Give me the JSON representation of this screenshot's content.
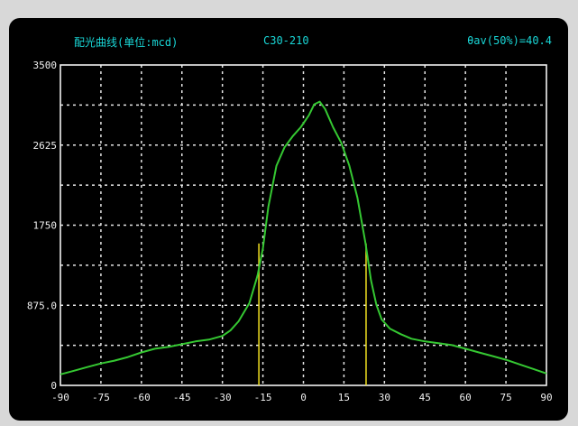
{
  "header": {
    "title": "配光曲线(单位:mcd)",
    "model": "C30-210",
    "beam_angle": "θav(50%)=40.4"
  },
  "chart_data": {
    "type": "line",
    "title": "配光曲线(单位:mcd)",
    "subtitle": "C30-210",
    "annotation": "θav(50%)=40.4",
    "xlabel": "",
    "ylabel": "",
    "xlim": [
      -90,
      90
    ],
    "ylim": [
      0,
      3500
    ],
    "grid": true,
    "colors": {
      "curve": "#35c832",
      "marker": "#f0e020",
      "grid": "#e6e6e6",
      "title": "#19d6d6"
    },
    "x_ticks": [
      "-90",
      "-75",
      "-60",
      "-45",
      "-30",
      "-15",
      "0",
      "15",
      "30",
      "45",
      "60",
      "75",
      "90"
    ],
    "y_ticks": [
      "0",
      "875.0",
      "1750",
      "2625",
      "3500"
    ],
    "series": [
      {
        "values": [
          [
            -90,
            120
          ],
          [
            -85,
            160
          ],
          [
            -80,
            200
          ],
          [
            -75,
            240
          ],
          [
            -70,
            270
          ],
          [
            -65,
            310
          ],
          [
            -60,
            360
          ],
          [
            -55,
            400
          ],
          [
            -50,
            420
          ],
          [
            -45,
            450
          ],
          [
            -40,
            480
          ],
          [
            -35,
            500
          ],
          [
            -30,
            540
          ],
          [
            -27,
            600
          ],
          [
            -24,
            700
          ],
          [
            -20,
            900
          ],
          [
            -17,
            1200
          ],
          [
            -15,
            1500
          ],
          [
            -13,
            1950
          ],
          [
            -10,
            2400
          ],
          [
            -7,
            2600
          ],
          [
            -4,
            2720
          ],
          [
            -1,
            2820
          ],
          [
            2,
            2950
          ],
          [
            4,
            3070
          ],
          [
            6,
            3100
          ],
          [
            8,
            3020
          ],
          [
            11,
            2820
          ],
          [
            14,
            2650
          ],
          [
            17,
            2400
          ],
          [
            20,
            2050
          ],
          [
            23,
            1550
          ],
          [
            25,
            1150
          ],
          [
            27,
            880
          ],
          [
            29,
            720
          ],
          [
            32,
            620
          ],
          [
            36,
            560
          ],
          [
            40,
            510
          ],
          [
            45,
            480
          ],
          [
            50,
            460
          ],
          [
            55,
            440
          ],
          [
            60,
            400
          ],
          [
            65,
            360
          ],
          [
            70,
            320
          ],
          [
            75,
            280
          ],
          [
            80,
            230
          ],
          [
            85,
            180
          ],
          [
            90,
            130
          ]
        ]
      }
    ],
    "markers": [
      {
        "x": -16.5,
        "y": 1550
      },
      {
        "x": 23.2,
        "y": 1550
      }
    ]
  }
}
